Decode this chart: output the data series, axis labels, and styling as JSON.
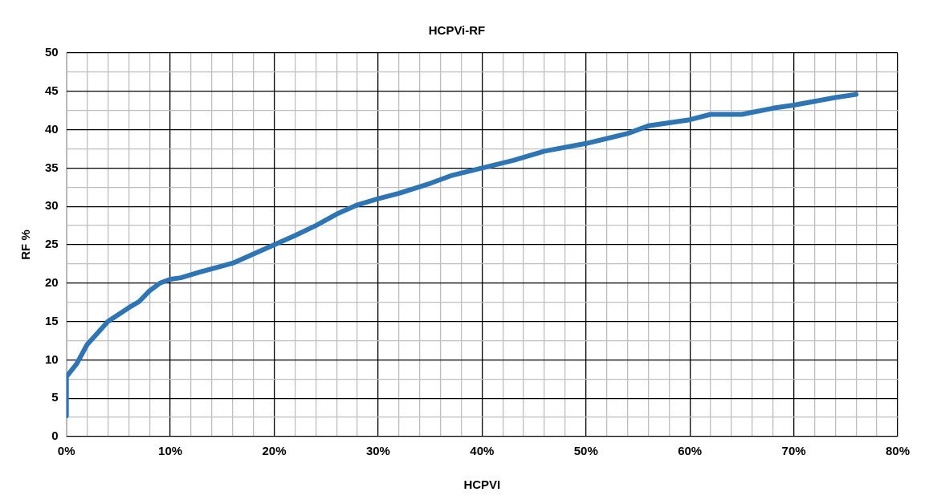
{
  "chart_data": {
    "type": "line",
    "title": "HCPVi-RF",
    "xlabel": "HCPVI",
    "ylabel": "RF %",
    "x": [
      0,
      0,
      1,
      2,
      3,
      4,
      6,
      7,
      8,
      9,
      10,
      11,
      13,
      16,
      18,
      20,
      22,
      24,
      26,
      28,
      30,
      32,
      35,
      37,
      40,
      43,
      46,
      50,
      54,
      56,
      60,
      62,
      65,
      68,
      70,
      74,
      76
    ],
    "series": [
      {
        "color": "#2e75b6",
        "values": [
          2.7,
          7.8,
          9.5,
          12,
          13.5,
          15,
          16.8,
          17.6,
          19,
          20,
          20.5,
          20.7,
          21.5,
          22.6,
          23.8,
          25,
          26.2,
          27.5,
          29,
          30.2,
          31,
          31.7,
          33,
          34,
          35,
          36,
          37.2,
          38.2,
          39.5,
          40.5,
          41.3,
          42,
          42,
          42.8,
          43.2,
          44.2,
          44.6
        ]
      }
    ],
    "xlim": [
      0,
      80
    ],
    "xticks": [
      {
        "value": 0,
        "label": "0%"
      },
      {
        "value": 2,
        "label": null
      },
      {
        "value": 4,
        "label": null
      },
      {
        "value": 6,
        "label": null
      },
      {
        "value": 8,
        "label": null
      },
      {
        "value": 10,
        "label": "10%"
      },
      {
        "value": 12,
        "label": null
      },
      {
        "value": 14,
        "label": null
      },
      {
        "value": 16,
        "label": null
      },
      {
        "value": 18,
        "label": null
      },
      {
        "value": 20,
        "label": "20%"
      },
      {
        "value": 22,
        "label": null
      },
      {
        "value": 24,
        "label": null
      },
      {
        "value": 26,
        "label": null
      },
      {
        "value": 28,
        "label": null
      },
      {
        "value": 30,
        "label": "30%"
      },
      {
        "value": 32,
        "label": null
      },
      {
        "value": 34,
        "label": null
      },
      {
        "value": 36,
        "label": null
      },
      {
        "value": 38,
        "label": null
      },
      {
        "value": 40,
        "label": "40%"
      },
      {
        "value": 42,
        "label": null
      },
      {
        "value": 44,
        "label": null
      },
      {
        "value": 46,
        "label": null
      },
      {
        "value": 48,
        "label": null
      },
      {
        "value": 50,
        "label": "50%"
      },
      {
        "value": 52,
        "label": null
      },
      {
        "value": 54,
        "label": null
      },
      {
        "value": 56,
        "label": null
      },
      {
        "value": 58,
        "label": null
      },
      {
        "value": 60,
        "label": "60%"
      },
      {
        "value": 62,
        "label": null
      },
      {
        "value": 64,
        "label": null
      },
      {
        "value": 66,
        "label": null
      },
      {
        "value": 68,
        "label": null
      },
      {
        "value": 70,
        "label": "70%"
      },
      {
        "value": 72,
        "label": null
      },
      {
        "value": 74,
        "label": null
      },
      {
        "value": 76,
        "label": null
      },
      {
        "value": 78,
        "label": null
      },
      {
        "value": 80,
        "label": "80%"
      }
    ],
    "ylim": [
      0,
      50
    ],
    "yticks": [
      0,
      {
        "value": 2.5,
        "label": null
      },
      5,
      {
        "value": 7.5,
        "label": null
      },
      10,
      {
        "value": 12.5,
        "label": null
      },
      15,
      {
        "value": 17.5,
        "label": null
      },
      20,
      {
        "value": 22.5,
        "label": null
      },
      25,
      {
        "value": 27.5,
        "label": null
      },
      30,
      {
        "value": 32.5,
        "label": null
      },
      35,
      {
        "value": 37.5,
        "label": null
      },
      40,
      {
        "value": 42.5,
        "label": null
      },
      45,
      {
        "value": 47.5,
        "label": null
      },
      50
    ],
    "grid": true,
    "marker": "none",
    "line_style": "solid"
  }
}
